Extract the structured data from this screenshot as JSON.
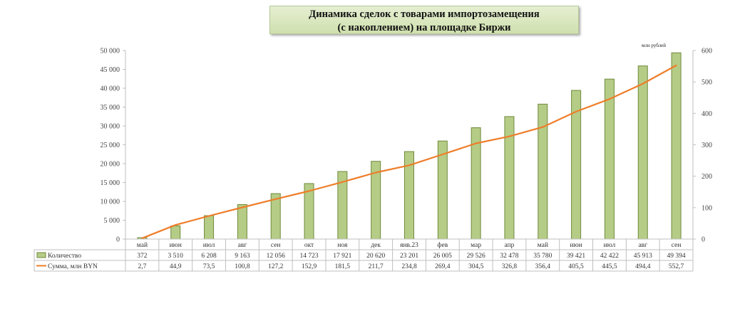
{
  "chart_data": {
    "type": "bar",
    "title_lines": [
      "Динамика сделок с товарами импортозамещения",
      "(с накоплением) на площадке Биржи"
    ],
    "categories": [
      "май",
      "июн",
      "июл",
      "авг",
      "сен",
      "окт",
      "ноя",
      "дек",
      "янв.23",
      "фев",
      "мар",
      "апр",
      "май",
      "июн",
      "июл",
      "авг",
      "сен"
    ],
    "series": [
      {
        "name": "Количество",
        "type": "bar",
        "axis": "left",
        "color": "#b5cc86",
        "values": [
          372,
          3510,
          6208,
          9163,
          12056,
          14723,
          17921,
          20620,
          23201,
          26005,
          29526,
          32478,
          35780,
          39421,
          42422,
          45913,
          49394
        ],
        "labels": [
          "372",
          "3 510",
          "6 208",
          "9 163",
          "12 056",
          "14 723",
          "17 921",
          "20 620",
          "23 201",
          "26 005",
          "29 526",
          "32 478",
          "35 780",
          "39 421",
          "42 422",
          "45 913",
          "49 394"
        ]
      },
      {
        "name": "Сумма, млн BYN",
        "type": "line",
        "axis": "right",
        "color": "#ee7d2a",
        "values": [
          2.7,
          44.9,
          73.5,
          100.8,
          127.2,
          152.9,
          181.5,
          211.7,
          234.8,
          269.4,
          304.5,
          326.8,
          356.4,
          405.5,
          445.5,
          494.4,
          552.7
        ],
        "labels": [
          "2,7",
          "44,9",
          "73,5",
          "100,8",
          "127,2",
          "152,9",
          "181,5",
          "211,7",
          "234,8",
          "269,4",
          "304,5",
          "326,8",
          "356,4",
          "405,5",
          "445,5",
          "494,4",
          "552,7"
        ]
      }
    ],
    "y_left": {
      "range": [
        0,
        50000
      ],
      "ticks": [
        0,
        5000,
        10000,
        15000,
        20000,
        25000,
        30000,
        35000,
        40000,
        45000,
        50000
      ],
      "tick_labels": [
        "0",
        "5 000",
        "10 000",
        "15 000",
        "20 000",
        "25 000",
        "30 000",
        "35 000",
        "40 000",
        "45 000",
        "50 000"
      ]
    },
    "y_right": {
      "range": [
        0,
        600
      ],
      "ticks": [
        0,
        100,
        200,
        300,
        400,
        500,
        600
      ],
      "tick_labels": [
        "0",
        "100",
        "200",
        "300",
        "400",
        "500",
        "600"
      ],
      "unit": "млн рублей"
    },
    "grid": false,
    "legend": "data-table",
    "colors": {
      "bar_fill": "#b5cc86",
      "bar_stroke": "#6f8a3c",
      "line": "#ee7d2a",
      "title_bg": "#dde8c4"
    }
  }
}
